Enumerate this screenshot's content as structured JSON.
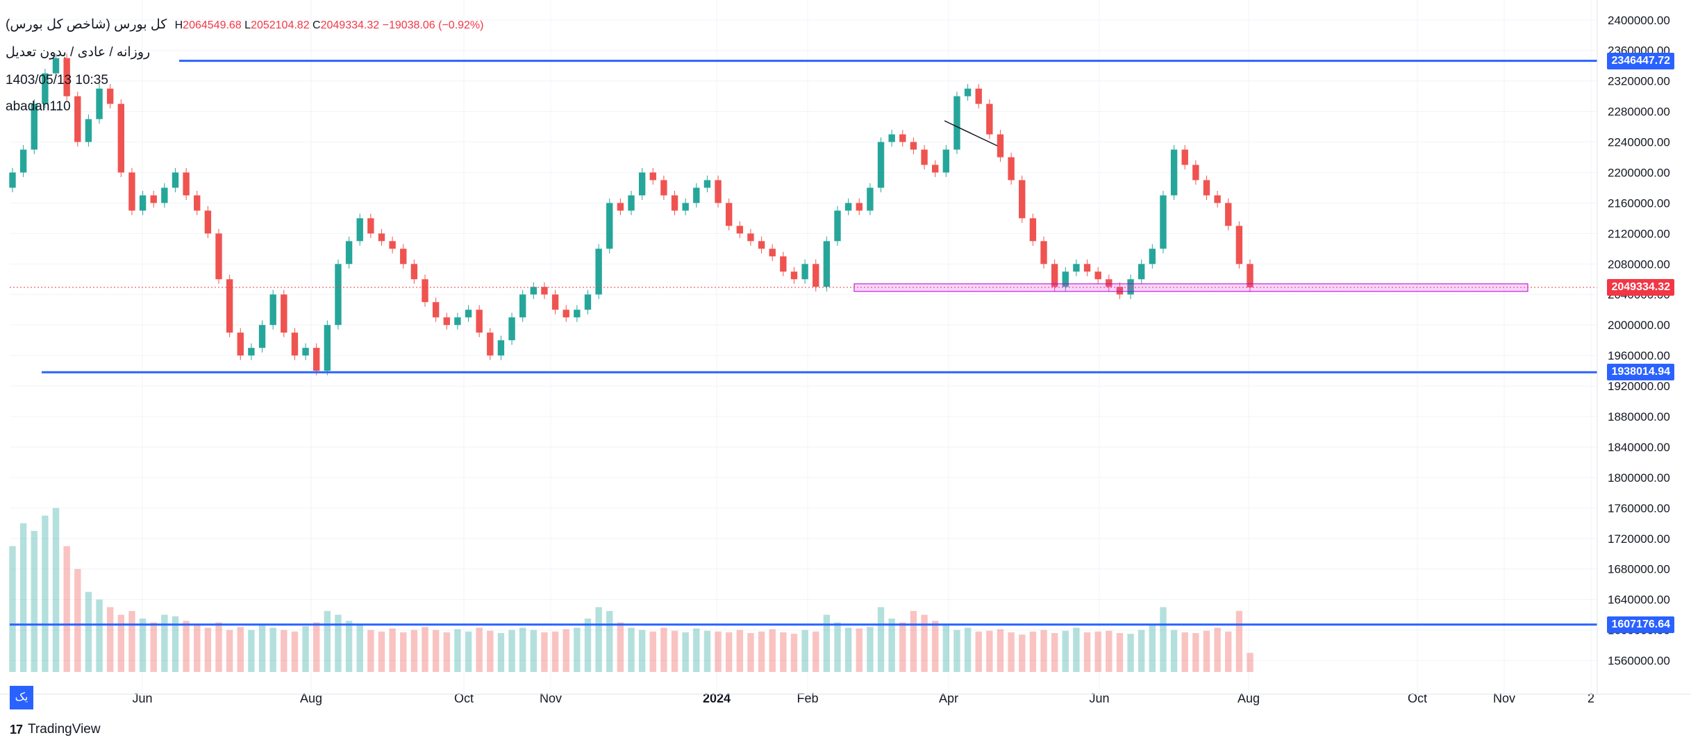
{
  "symbol": {
    "name": "کل بورس (شاخص کل بورس)",
    "open_h": "2064549.68",
    "low_l": "2052104.82",
    "close_c": "2049334.32",
    "change": "−19038.06 (−0.92%)",
    "h_label": "H",
    "l_label": "L",
    "c_label": "C",
    "interval": "روزانه / عادی / بدون تعدیل",
    "datetime": "1403/05/13 10:35",
    "author": "abadan110"
  },
  "price_tags": {
    "upper_line": "2346447.72",
    "current": "2049334.32",
    "lower_line": "1938014.94",
    "volume_line": "1607176.64"
  },
  "footer": {
    "brand": "TradingView",
    "logo": "17",
    "corner_btn": "یک"
  },
  "colors": {
    "up": "#26a69a",
    "down": "#ef5350",
    "line": "#2962ff",
    "zone": "#e040fb",
    "current": "#f23645"
  },
  "chart_data": {
    "type": "candlestick",
    "y_axis": {
      "ticks": [
        "2400000.00",
        "2360000.00",
        "2320000.00",
        "2280000.00",
        "2240000.00",
        "2200000.00",
        "2160000.00",
        "2120000.00",
        "2080000.00",
        "2040000.00",
        "2000000.00",
        "1960000.00",
        "1920000.00",
        "1880000.00",
        "1840000.00",
        "1800000.00",
        "1760000.00",
        "1720000.00",
        "1680000.00",
        "1640000.00",
        "1600000.00",
        "1560000.00"
      ],
      "range": [
        1545000,
        2408000
      ]
    },
    "x_axis": {
      "ticks": [
        "Jun",
        "Aug",
        "Oct",
        "Nov",
        "2024",
        "Feb",
        "Apr",
        "Jun",
        "Aug",
        "Oct",
        "Nov",
        "2"
      ]
    },
    "horizontal_lines": [
      2346447.72,
      1938014.94,
      1607176.64
    ],
    "current_price": 2049334.32,
    "support_zone": [
      2044000,
      2054000
    ],
    "closes": [
      2200000,
      2230000,
      2290000,
      2330000,
      2350000,
      2300000,
      2240000,
      2270000,
      2310000,
      2290000,
      2200000,
      2150000,
      2170000,
      2160000,
      2180000,
      2200000,
      2170000,
      2150000,
      2120000,
      2060000,
      1990000,
      1960000,
      1970000,
      2000000,
      2040000,
      1990000,
      1960000,
      1970000,
      1940000,
      2000000,
      2080000,
      2110000,
      2140000,
      2120000,
      2110000,
      2100000,
      2080000,
      2060000,
      2030000,
      2010000,
      2000000,
      2010000,
      2020000,
      1990000,
      1960000,
      1980000,
      2010000,
      2040000,
      2050000,
      2040000,
      2020000,
      2010000,
      2020000,
      2040000,
      2100000,
      2160000,
      2150000,
      2170000,
      2200000,
      2190000,
      2170000,
      2150000,
      2160000,
      2180000,
      2190000,
      2160000,
      2130000,
      2120000,
      2110000,
      2100000,
      2090000,
      2070000,
      2060000,
      2080000,
      2050000,
      2110000,
      2150000,
      2160000,
      2150000,
      2180000,
      2240000,
      2250000,
      2240000,
      2230000,
      2210000,
      2200000,
      2230000,
      2300000,
      2310000,
      2290000,
      2250000,
      2220000,
      2190000,
      2140000,
      2110000,
      2080000,
      2050000,
      2070000,
      2080000,
      2070000,
      2060000,
      2050000,
      2040000,
      2060000,
      2080000,
      2100000,
      2170000,
      2230000,
      2210000,
      2190000,
      2170000,
      2160000,
      2130000,
      2080000,
      2049334
    ],
    "volumes": [
      1710000,
      1740000,
      1730000,
      1750000,
      1760000,
      1710000,
      1680000,
      1650000,
      1640000,
      1630000,
      1620000,
      1625000,
      1615000,
      1610000,
      1620000,
      1618000,
      1612000,
      1608000,
      1603000,
      1610000,
      1600000,
      1604000,
      1600000,
      1606000,
      1603000,
      1600000,
      1598000,
      1605000,
      1610000,
      1625000,
      1620000,
      1612000,
      1606000,
      1600000,
      1598000,
      1602000,
      1597000,
      1600000,
      1604000,
      1600000,
      1597000,
      1601000,
      1598000,
      1603000,
      1599000,
      1596000,
      1600000,
      1603000,
      1600000,
      1597000,
      1598000,
      1601000,
      1603000,
      1615000,
      1630000,
      1625000,
      1610000,
      1603000,
      1600000,
      1598000,
      1603000,
      1599000,
      1597000,
      1602000,
      1599000,
      1598000,
      1597000,
      1600000,
      1596000,
      1598000,
      1601000,
      1597000,
      1595000,
      1600000,
      1598000,
      1620000,
      1610000,
      1603000,
      1602000,
      1604000,
      1630000,
      1615000,
      1610000,
      1625000,
      1620000,
      1612000,
      1606000,
      1600000,
      1603000,
      1598000,
      1599000,
      1601000,
      1597000,
      1594000,
      1598000,
      1600000,
      1596000,
      1599000,
      1603000,
      1597000,
      1598000,
      1599000,
      1596000,
      1595000,
      1600000,
      1606000,
      1630000,
      1600000,
      1597000,
      1596000,
      1599000,
      1603000,
      1598000,
      1625000,
      1570000
    ]
  }
}
